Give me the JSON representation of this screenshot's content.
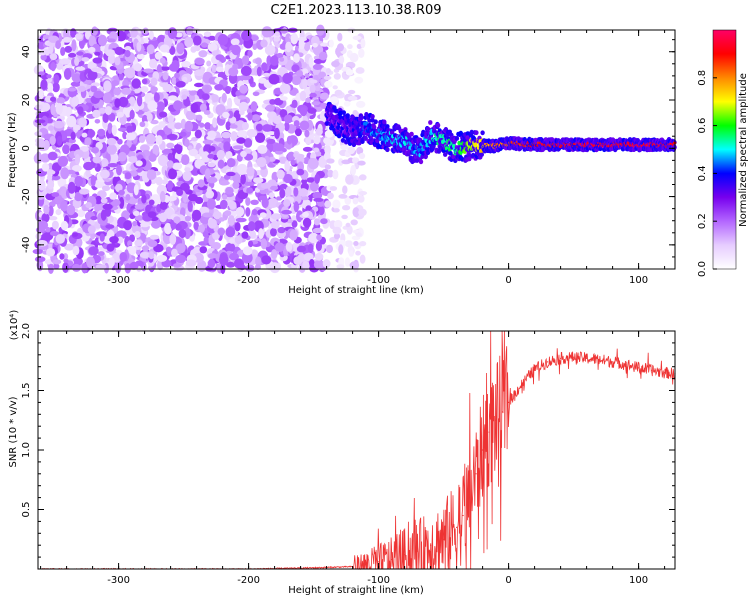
{
  "page_title": "C2E1.2023.113.10.38.R09",
  "chart_data": [
    {
      "type": "heatmap",
      "title": "C2E1.2023.113.10.38.R09",
      "xlabel": "Height of straight line (km)",
      "ylabel": "Frequency (Hz)",
      "xlim": [
        -362,
        128
      ],
      "ylim": [
        -50,
        49
      ],
      "x_ticks": [
        -300,
        -200,
        -100,
        0,
        100
      ],
      "x_tick_labels": [
        "-300",
        "-200",
        "-100",
        "0",
        "100"
      ],
      "y_ticks": [
        -40,
        -20,
        0,
        20,
        40
      ],
      "y_tick_labels": [
        "-40",
        "-20",
        "0",
        "20",
        "40"
      ],
      "grid": false,
      "noise_region": {
        "x_range": [
          -362,
          -140
        ],
        "frequency_range": [
          -50,
          49
        ],
        "amplitude_range": [
          0.05,
          0.25
        ]
      },
      "sparse_noise_region": {
        "x_range": [
          -140,
          -112
        ],
        "frequency_range": [
          -50,
          49
        ],
        "amplitude_range": [
          0.02,
          0.12
        ]
      },
      "signal_track": {
        "x": [
          -140,
          -130,
          -120,
          -110,
          -100,
          -90,
          -80,
          -70,
          -60,
          -50,
          -40,
          -30,
          -20,
          -10,
          0,
          20,
          50,
          80,
          100,
          128
        ],
        "frequency": [
          15,
          10,
          7,
          9,
          6,
          4,
          3,
          -2,
          5,
          3,
          0,
          1,
          1,
          1,
          2,
          1.5,
          1.5,
          1.5,
          1.5,
          1.5
        ],
        "amplitude": [
          0.3,
          0.28,
          0.3,
          0.42,
          0.45,
          0.48,
          0.5,
          0.45,
          0.5,
          0.55,
          0.55,
          0.65,
          0.75,
          0.8,
          0.85,
          0.9,
          0.92,
          0.92,
          0.93,
          0.93
        ]
      },
      "colorbar": {
        "label": "Normalized spectral amplitude",
        "range": [
          0.0,
          1.0
        ],
        "ticks": [
          0.0,
          0.2,
          0.4,
          0.6,
          0.8
        ],
        "tick_labels": [
          "0.0",
          "0.2",
          "0.4",
          "0.6",
          "0.8"
        ],
        "colors": [
          "#ffffff",
          "#e6ccff",
          "#b366ff",
          "#7700ee",
          "#0000ff",
          "#00ffff",
          "#00ff00",
          "#ffff00",
          "#ff8800",
          "#ff0000",
          "#ff0066"
        ]
      }
    },
    {
      "type": "line",
      "xlabel": "Height of straight line (km)",
      "ylabel": "SNR (10 * v/v)",
      "y_multiplier_label": "(x10⁴)",
      "xlim": [
        -362,
        128
      ],
      "ylim": [
        0,
        2.0
      ],
      "x_ticks": [
        -300,
        -200,
        -100,
        0,
        100
      ],
      "x_tick_labels": [
        "-300",
        "-200",
        "-100",
        "0",
        "100"
      ],
      "y_ticks": [
        0.5,
        1.0,
        1.5,
        2.0
      ],
      "y_tick_labels": [
        "0.5",
        "1.0",
        "1.5",
        "2.0"
      ],
      "grid": false,
      "series": [
        {
          "color": "#ee3333",
          "x": [
            -362,
            -300,
            -200,
            -150,
            -120,
            -110,
            -100,
            -90,
            -80,
            -70,
            -60,
            -50,
            -40,
            -35,
            -30,
            -25,
            -20,
            -15,
            -10,
            -5,
            0,
            10,
            20,
            30,
            40,
            50,
            60,
            70,
            80,
            90,
            100,
            110,
            120,
            128
          ],
          "y": [
            0.0,
            0.0,
            0.0,
            0.01,
            0.02,
            0.04,
            0.06,
            0.08,
            0.12,
            0.15,
            0.2,
            0.25,
            0.35,
            0.45,
            0.6,
            0.8,
            1.0,
            1.15,
            1.25,
            1.32,
            1.4,
            1.55,
            1.68,
            1.74,
            1.77,
            1.78,
            1.77,
            1.76,
            1.74,
            1.72,
            1.69,
            1.67,
            1.65,
            1.64
          ]
        }
      ]
    }
  ]
}
